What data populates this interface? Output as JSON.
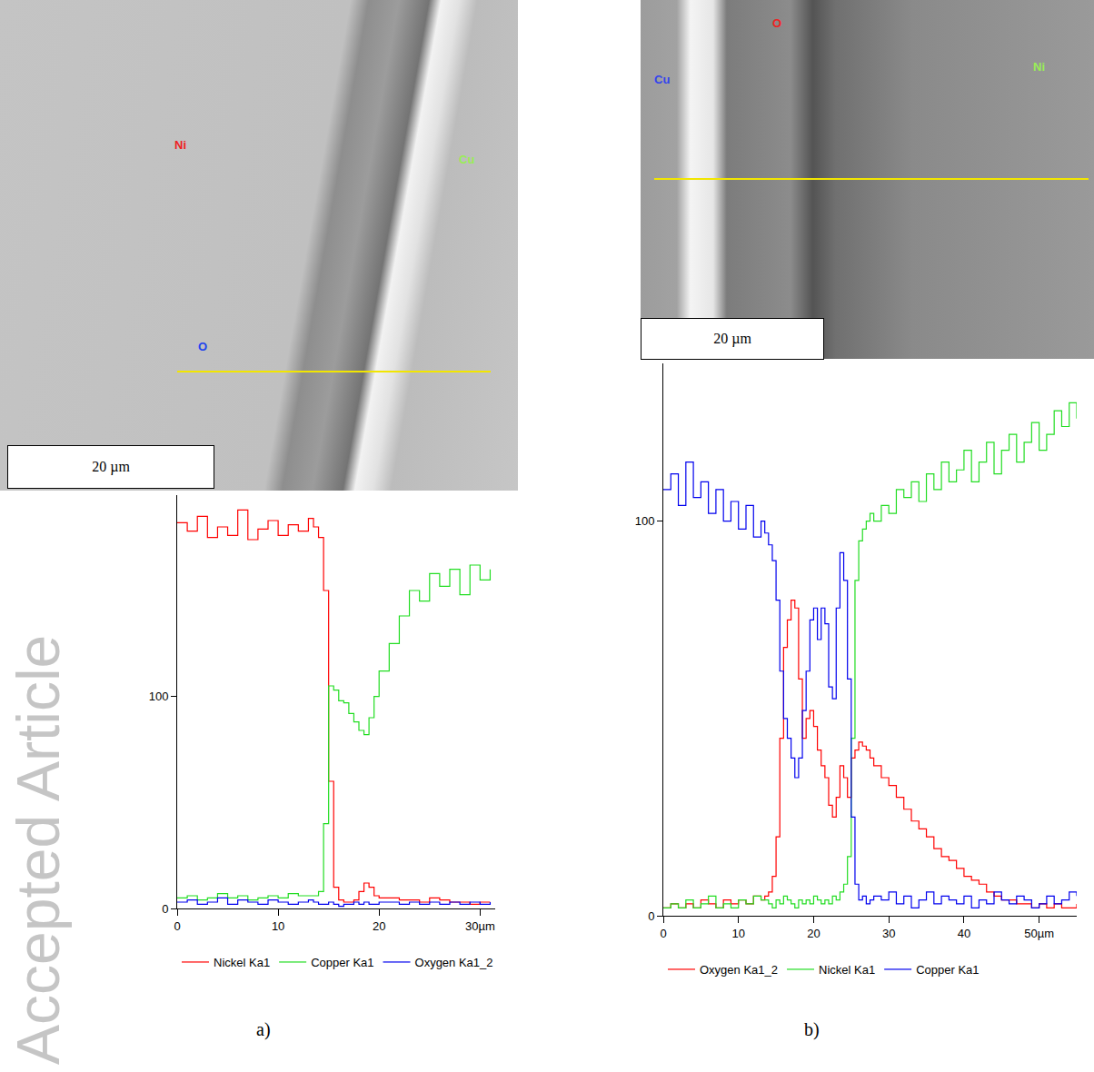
{
  "chart_data": [
    {
      "type": "line",
      "x": [
        0,
        1,
        2,
        3,
        4,
        5,
        6,
        7,
        8,
        9,
        10,
        11,
        12,
        13,
        13.5,
        14,
        14.5,
        15,
        15.5,
        16,
        16.5,
        17,
        17.5,
        18,
        18.5,
        19,
        19.5,
        20,
        21,
        22,
        23,
        24,
        25,
        26,
        27,
        28,
        29,
        30,
        31
      ],
      "series": [
        {
          "name": "Nickel Ka1",
          "color": "#ff0000",
          "values": [
            182,
            178,
            185,
            175,
            180,
            176,
            188,
            174,
            179,
            183,
            176,
            181,
            178,
            184,
            180,
            175,
            150,
            60,
            10,
            4,
            3,
            3,
            4,
            8,
            12,
            10,
            6,
            5,
            5,
            4,
            4,
            3,
            5,
            4,
            3,
            3,
            2,
            3,
            3
          ]
        },
        {
          "name": "Copper Ka1",
          "color": "#22dd22",
          "values": [
            5,
            6,
            4,
            5,
            7,
            5,
            6,
            4,
            5,
            6,
            5,
            7,
            6,
            6,
            6,
            8,
            40,
            105,
            103,
            98,
            97,
            92,
            88,
            84,
            82,
            90,
            100,
            112,
            125,
            138,
            150,
            145,
            158,
            152,
            160,
            148,
            162,
            155,
            160
          ]
        },
        {
          "name": "Oxygen Ka1_2",
          "color": "#0000ee",
          "values": [
            3,
            4,
            2,
            3,
            5,
            2,
            4,
            3,
            2,
            4,
            3,
            2,
            3,
            4,
            3,
            2,
            2,
            3,
            2,
            1,
            2,
            2,
            3,
            2,
            3,
            2,
            2,
            3,
            3,
            2,
            3,
            2,
            3,
            2,
            3,
            2,
            3,
            2,
            3
          ]
        }
      ],
      "xlim": [
        0,
        31.5
      ],
      "xticks": [
        0,
        10,
        20,
        {
          "value": 30,
          "label": "30µm"
        }
      ],
      "ylim": [
        0,
        195
      ],
      "yticks": [
        0,
        100
      ],
      "grid": false,
      "legend": "bottom"
    },
    {
      "type": "line",
      "x": [
        0,
        1,
        2,
        3,
        4,
        5,
        6,
        7,
        8,
        9,
        10,
        11,
        12,
        13,
        13.5,
        14,
        14.5,
        15,
        15.5,
        16,
        16.5,
        17,
        17.5,
        18,
        18.5,
        19,
        19.5,
        20,
        20.5,
        21,
        21.5,
        22,
        22.5,
        23,
        23.5,
        24,
        24.5,
        25,
        25.5,
        26,
        26.5,
        27,
        27.5,
        28,
        29,
        30,
        31,
        32,
        33,
        34,
        35,
        36,
        37,
        38,
        39,
        40,
        41,
        42,
        43,
        44,
        45,
        46,
        47,
        48,
        49,
        50,
        51,
        52,
        53,
        54,
        55
      ],
      "series": [
        {
          "name": "Oxygen Ka1_2",
          "color": "#ff0000",
          "values": [
            2,
            3,
            2,
            3,
            2,
            4,
            3,
            2,
            4,
            3,
            4,
            3,
            5,
            4,
            5,
            6,
            10,
            20,
            45,
            68,
            75,
            80,
            78,
            60,
            45,
            50,
            52,
            48,
            42,
            38,
            35,
            28,
            25,
            30,
            38,
            35,
            30,
            40,
            42,
            44,
            43,
            42,
            40,
            38,
            35,
            33,
            30,
            27,
            24,
            22,
            20,
            17,
            15,
            14,
            12,
            10,
            9,
            8,
            6,
            5,
            4,
            4,
            3,
            3,
            2,
            3,
            2,
            3,
            2,
            2,
            3
          ]
        },
        {
          "name": "Nickel Ka1",
          "color": "#22dd22",
          "values": [
            2,
            3,
            2,
            4,
            2,
            3,
            5,
            2,
            3,
            2,
            4,
            3,
            5,
            4,
            4,
            3,
            2,
            4,
            3,
            5,
            4,
            3,
            2,
            4,
            3,
            4,
            3,
            5,
            4,
            3,
            4,
            3,
            5,
            4,
            6,
            8,
            15,
            45,
            85,
            95,
            98,
            100,
            102,
            100,
            104,
            102,
            108,
            106,
            110,
            105,
            112,
            108,
            115,
            110,
            113,
            118,
            110,
            115,
            120,
            112,
            118,
            122,
            115,
            120,
            125,
            118,
            122,
            128,
            124,
            130,
            126
          ]
        },
        {
          "name": "Copper Ka1",
          "color": "#0000ee",
          "values": [
            108,
            112,
            104,
            115,
            106,
            110,
            102,
            108,
            100,
            105,
            98,
            104,
            96,
            100,
            97,
            94,
            90,
            80,
            62,
            50,
            45,
            40,
            35,
            40,
            52,
            62,
            75,
            78,
            70,
            78,
            74,
            58,
            55,
            78,
            92,
            85,
            60,
            25,
            8,
            4,
            5,
            3,
            4,
            5,
            4,
            6,
            3,
            5,
            2,
            4,
            6,
            3,
            5,
            4,
            3,
            5,
            2,
            4,
            3,
            6,
            4,
            3,
            5,
            4,
            2,
            3,
            5,
            3,
            4,
            6,
            5
          ]
        }
      ],
      "xlim": [
        0,
        55
      ],
      "xticks": [
        0,
        10,
        20,
        30,
        40,
        {
          "value": 50,
          "label": "50µm"
        }
      ],
      "ylim": [
        0,
        140
      ],
      "yticks": [
        0,
        100
      ],
      "grid": false,
      "legend": "bottom"
    }
  ],
  "figure": {
    "watermark": "Accepted Article",
    "panels": [
      {
        "label": "a)",
        "micrograph": {
          "scale_bar": "20 µm",
          "element_labels": [
            {
              "text": "Ni",
              "color": "#ee2222"
            },
            {
              "text": "Cu",
              "color": "#99ee55"
            },
            {
              "text": "O",
              "color": "#2244ee"
            }
          ]
        }
      },
      {
        "label": "b)",
        "micrograph": {
          "scale_bar": "20 µm",
          "element_labels": [
            {
              "text": "Cu",
              "color": "#3344ee"
            },
            {
              "text": "O",
              "color": "#ee2222"
            },
            {
              "text": "Ni",
              "color": "#99ee55"
            }
          ]
        }
      }
    ]
  }
}
